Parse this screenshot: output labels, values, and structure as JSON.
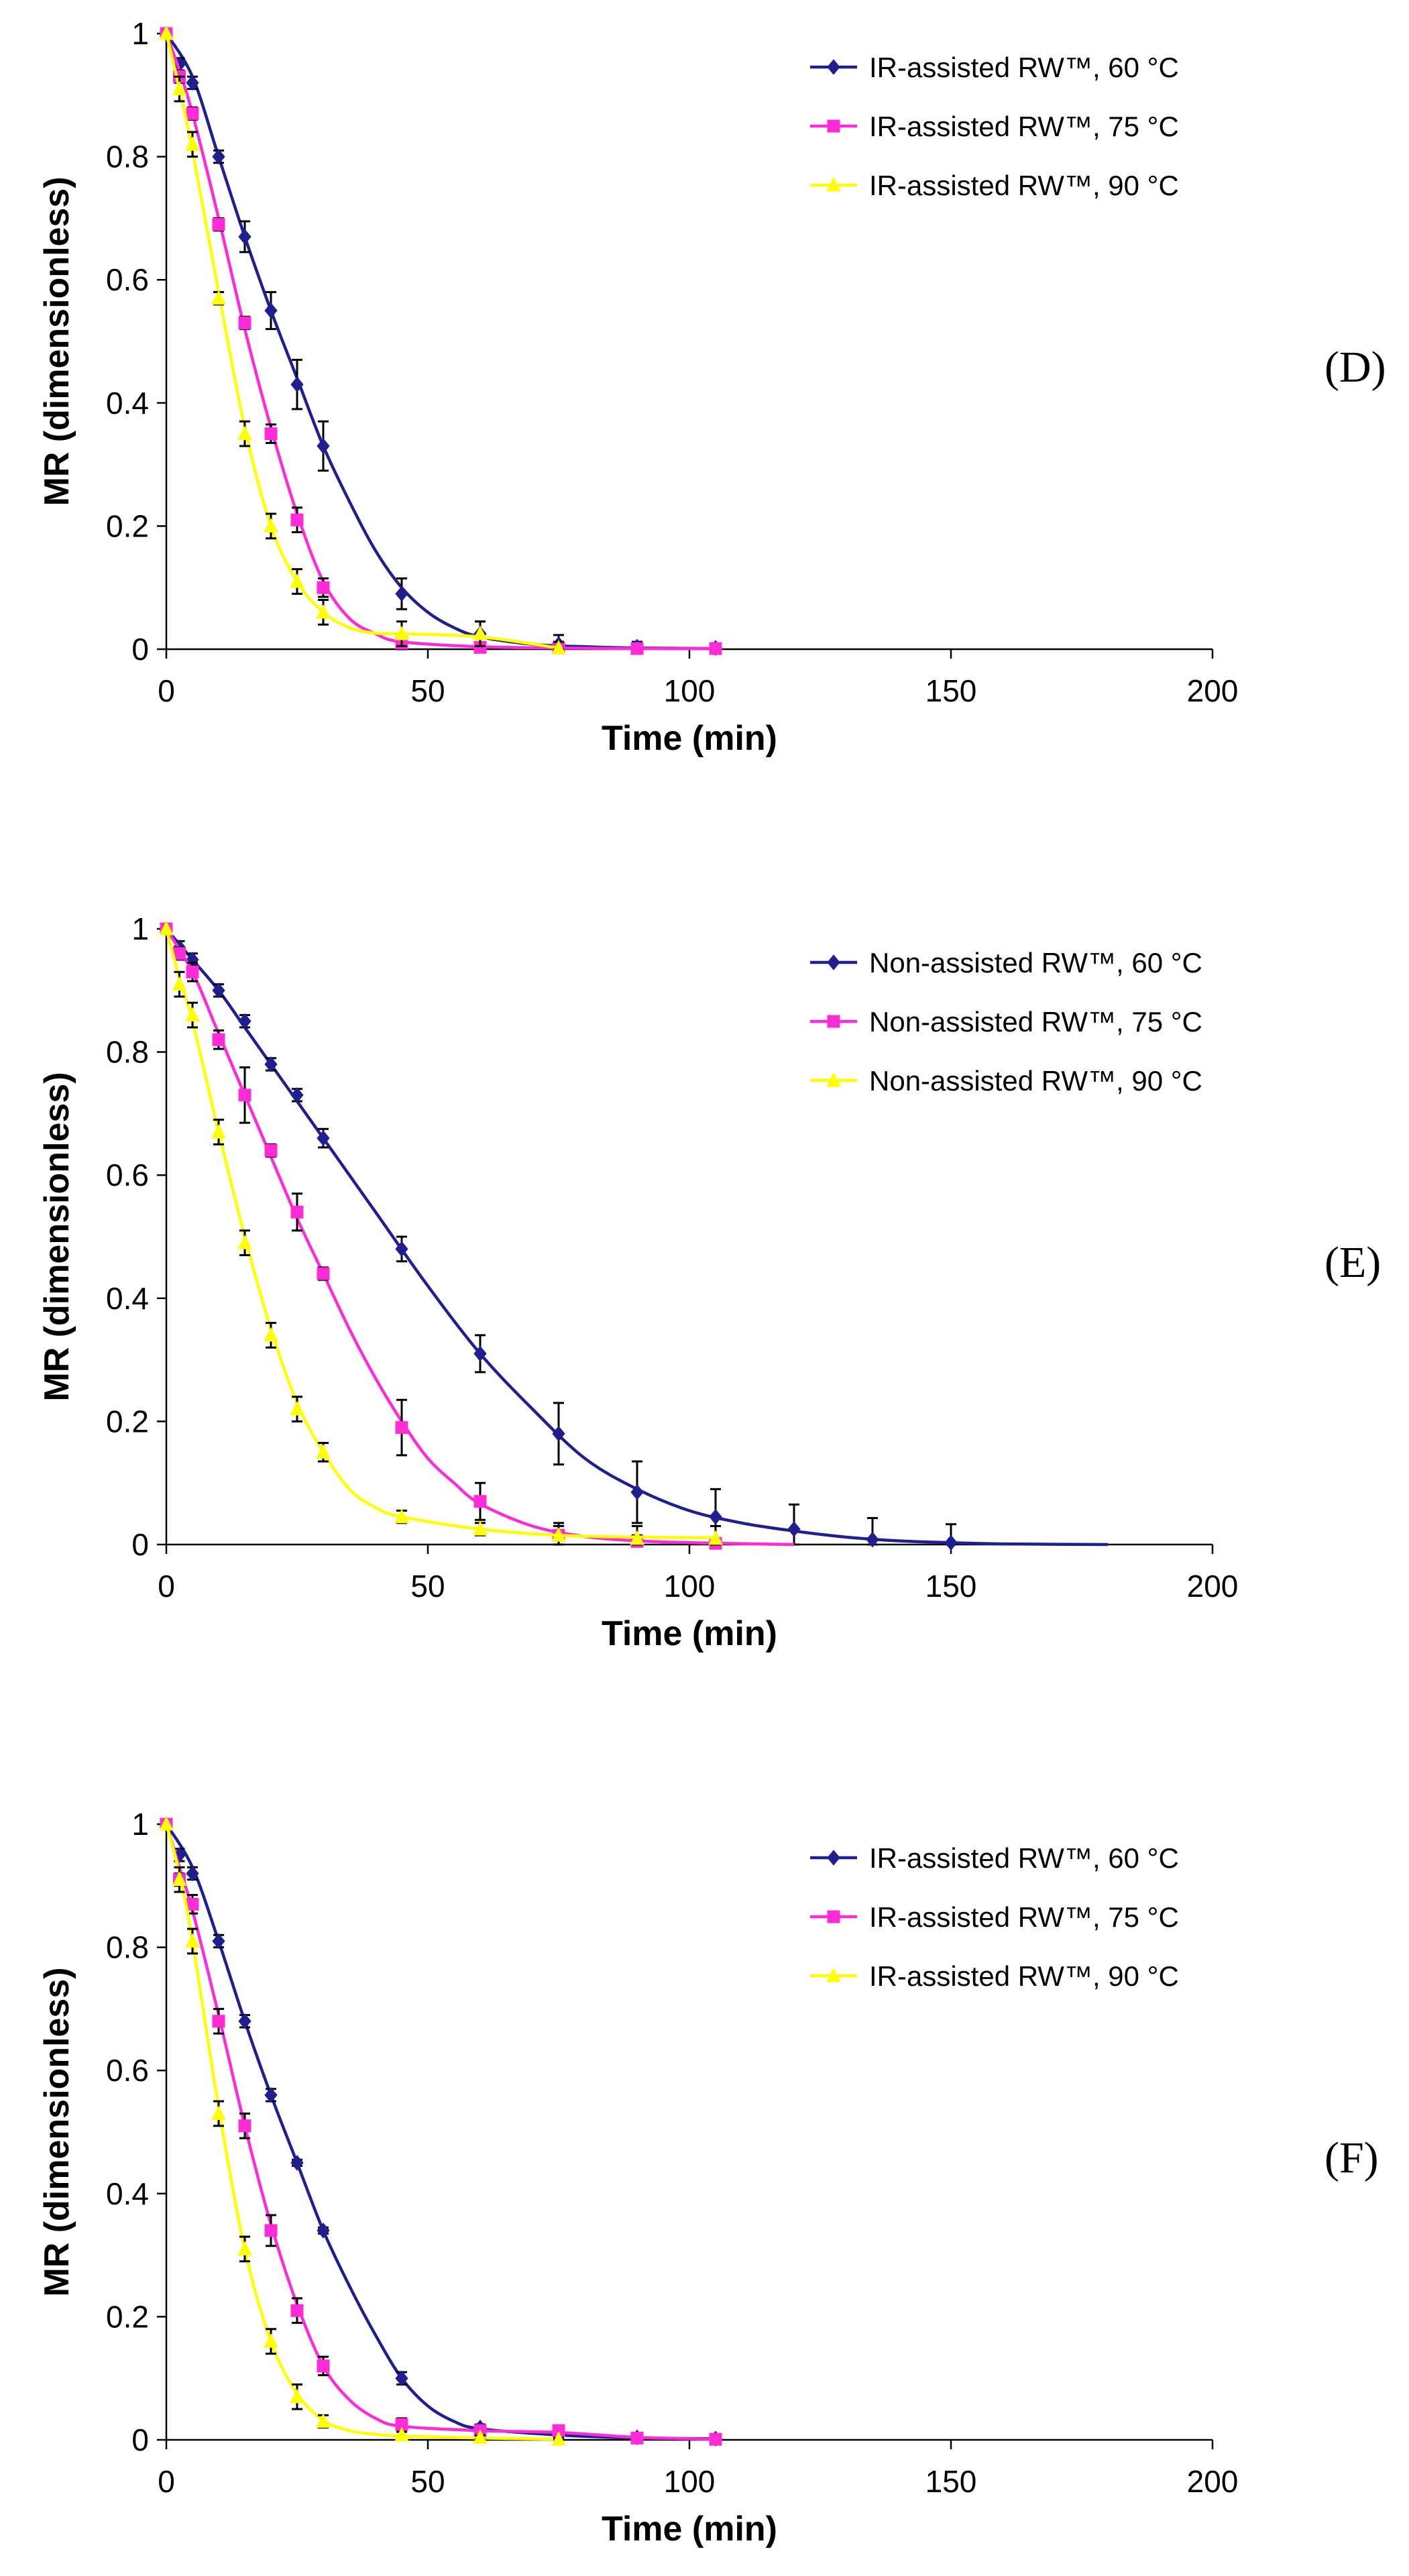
{
  "chart_data": [
    {
      "type": "line",
      "panel": "(D)",
      "xlabel": "Time (min)",
      "ylabel": "MR (dimensionless)",
      "xlim": [
        0,
        200
      ],
      "ylim": [
        0,
        1
      ],
      "xticks": [
        "0",
        "50",
        "100",
        "150",
        "200"
      ],
      "yticks": [
        "0",
        "0.2",
        "0.4",
        "0.6",
        "0.8",
        "1"
      ],
      "legend_position": "top-right",
      "series": [
        {
          "name": "IR-assisted RW™, 60 °C",
          "color": "#1f1f8f",
          "marker": "diamond",
          "x": [
            0,
            2.5,
            5,
            10,
            15,
            20,
            25,
            30,
            45,
            60,
            75,
            90,
            105
          ],
          "y": [
            1.0,
            0.95,
            0.92,
            0.8,
            0.67,
            0.55,
            0.43,
            0.33,
            0.09,
            0.025,
            0.008,
            0.004,
            0.002
          ],
          "err": [
            0,
            0.01,
            0.01,
            0.01,
            0.025,
            0.03,
            0.04,
            0.04,
            0.025,
            0.02,
            0.015,
            0.008,
            0.004
          ],
          "fit_x": [
            0,
            5,
            10,
            15,
            20,
            25,
            30,
            35,
            40,
            45,
            50,
            55,
            60,
            70,
            80,
            90,
            105
          ],
          "fit_y": [
            1.0,
            0.93,
            0.8,
            0.67,
            0.55,
            0.44,
            0.33,
            0.24,
            0.16,
            0.1,
            0.06,
            0.035,
            0.02,
            0.008,
            0.004,
            0.002,
            0.001
          ]
        },
        {
          "name": "IR-assisted RW™, 75 °C",
          "color": "#ff2bd6",
          "marker": "square",
          "x": [
            0,
            2.5,
            5,
            10,
            15,
            20,
            25,
            30,
            45,
            60,
            75,
            90,
            105
          ],
          "y": [
            1.0,
            0.93,
            0.87,
            0.69,
            0.53,
            0.35,
            0.21,
            0.1,
            0.01,
            0.003,
            0.002,
            0.001,
            0.001
          ],
          "err": [
            0,
            0.01,
            0.01,
            0.01,
            0.01,
            0.015,
            0.02,
            0.015,
            0.01,
            0.005,
            0.003,
            0.002,
            0.001
          ],
          "fit_x": [
            0,
            2.5,
            5,
            10,
            15,
            20,
            25,
            30,
            35,
            40,
            45,
            60,
            75,
            90,
            105
          ],
          "fit_y": [
            1.0,
            0.94,
            0.87,
            0.7,
            0.52,
            0.36,
            0.22,
            0.11,
            0.05,
            0.025,
            0.012,
            0.004,
            0.002,
            0.001,
            0.001
          ]
        },
        {
          "name": "IR-assisted RW™, 90 °C",
          "color": "#ffff00",
          "marker": "triangle",
          "x": [
            0,
            2.5,
            5,
            10,
            15,
            20,
            25,
            30,
            45,
            60,
            75
          ],
          "y": [
            1.0,
            0.91,
            0.82,
            0.57,
            0.35,
            0.2,
            0.11,
            0.06,
            0.025,
            0.025,
            0.002
          ],
          "err": [
            0,
            0.02,
            0.02,
            0.01,
            0.02,
            0.02,
            0.02,
            0.02,
            0.02,
            0.02,
            0.01
          ],
          "fit_x": [
            0,
            2.5,
            5,
            10,
            15,
            20,
            25,
            30,
            35,
            40,
            45,
            60,
            75
          ],
          "fit_y": [
            1.0,
            0.91,
            0.81,
            0.58,
            0.36,
            0.2,
            0.11,
            0.06,
            0.035,
            0.026,
            0.025,
            0.02,
            0.002
          ]
        }
      ]
    },
    {
      "type": "line",
      "panel": "(E)",
      "xlabel": "Time (min)",
      "ylabel": "MR (dimensionless)",
      "xlim": [
        0,
        200
      ],
      "ylim": [
        0,
        1
      ],
      "xticks": [
        "0",
        "50",
        "100",
        "150",
        "200"
      ],
      "yticks": [
        "0",
        "0.2",
        "0.4",
        "0.6",
        "0.8",
        "1"
      ],
      "legend_position": "top-right",
      "series": [
        {
          "name": "Non-assisted RW™, 60 °C",
          "color": "#1f1f8f",
          "marker": "diamond",
          "x": [
            0,
            2.5,
            5,
            10,
            15,
            20,
            25,
            30,
            45,
            60,
            75,
            90,
            105,
            120,
            135,
            150
          ],
          "y": [
            1.0,
            0.97,
            0.95,
            0.9,
            0.85,
            0.78,
            0.73,
            0.66,
            0.48,
            0.31,
            0.18,
            0.085,
            0.045,
            0.025,
            0.008,
            0.003
          ],
          "err": [
            0,
            0.01,
            0.01,
            0.01,
            0.01,
            0.01,
            0.01,
            0.015,
            0.02,
            0.03,
            0.05,
            0.05,
            0.045,
            0.04,
            0.035,
            0.03
          ],
          "fit_x": [
            0,
            5,
            10,
            15,
            20,
            25,
            30,
            40,
            50,
            60,
            70,
            80,
            90,
            100,
            110,
            120,
            130,
            140,
            150,
            160,
            180
          ],
          "fit_y": [
            1.0,
            0.95,
            0.9,
            0.84,
            0.78,
            0.72,
            0.66,
            0.54,
            0.42,
            0.31,
            0.22,
            0.14,
            0.09,
            0.055,
            0.035,
            0.022,
            0.012,
            0.006,
            0.003,
            0.001,
            0.0
          ]
        },
        {
          "name": "Non-assisted RW™, 75 °C",
          "color": "#ff2bd6",
          "marker": "square",
          "x": [
            0,
            2.5,
            5,
            10,
            15,
            20,
            25,
            30,
            45,
            60,
            75,
            90,
            105
          ],
          "y": [
            1.0,
            0.96,
            0.93,
            0.82,
            0.73,
            0.64,
            0.54,
            0.44,
            0.19,
            0.07,
            0.015,
            0.005,
            0.002
          ],
          "err": [
            0,
            0.01,
            0.015,
            0.015,
            0.045,
            0.01,
            0.03,
            0.01,
            0.045,
            0.03,
            0.015,
            0.01,
            0.005
          ],
          "fit_x": [
            0,
            5,
            10,
            15,
            20,
            25,
            30,
            35,
            40,
            45,
            50,
            55,
            60,
            70,
            80,
            90,
            100,
            120
          ],
          "fit_y": [
            1.0,
            0.93,
            0.83,
            0.73,
            0.63,
            0.53,
            0.44,
            0.35,
            0.27,
            0.2,
            0.14,
            0.1,
            0.066,
            0.03,
            0.013,
            0.006,
            0.003,
            0.0
          ]
        },
        {
          "name": "Non-assisted RW™, 90 °C",
          "color": "#ffff00",
          "marker": "triangle",
          "x": [
            0,
            2.5,
            5,
            10,
            15,
            20,
            25,
            30,
            45,
            60,
            75,
            90,
            105
          ],
          "y": [
            1.0,
            0.91,
            0.86,
            0.67,
            0.49,
            0.34,
            0.22,
            0.15,
            0.045,
            0.025,
            0.015,
            0.01,
            0.01
          ],
          "err": [
            0,
            0.02,
            0.02,
            0.02,
            0.02,
            0.02,
            0.02,
            0.015,
            0.01,
            0.01,
            0.02,
            0.02,
            0.02
          ],
          "fit_x": [
            0,
            2.5,
            5,
            10,
            15,
            20,
            25,
            30,
            35,
            40,
            45,
            60,
            75,
            90,
            105
          ],
          "fit_y": [
            1.0,
            0.92,
            0.85,
            0.67,
            0.5,
            0.35,
            0.23,
            0.15,
            0.09,
            0.06,
            0.045,
            0.025,
            0.015,
            0.012,
            0.011
          ]
        }
      ]
    },
    {
      "type": "line",
      "panel": "(F)",
      "xlabel": "Time (min)",
      "ylabel": "MR (dimensionless)",
      "xlim": [
        0,
        200
      ],
      "ylim": [
        0,
        1
      ],
      "xticks": [
        "0",
        "50",
        "100",
        "150",
        "200"
      ],
      "yticks": [
        "0",
        "0.2",
        "0.4",
        "0.6",
        "0.8",
        "1"
      ],
      "legend_position": "top-right",
      "series": [
        {
          "name": "IR-assisted RW™, 60 °C",
          "color": "#1f1f8f",
          "marker": "diamond",
          "x": [
            0,
            2.5,
            5,
            10,
            15,
            20,
            25,
            30,
            45,
            60,
            75,
            90,
            105
          ],
          "y": [
            1.0,
            0.95,
            0.92,
            0.81,
            0.68,
            0.56,
            0.45,
            0.34,
            0.1,
            0.02,
            0.01,
            0.004,
            0.002
          ],
          "err": [
            0,
            0.01,
            0.01,
            0.01,
            0.01,
            0.01,
            0.005,
            0.005,
            0.01,
            0.005,
            0.005,
            0.004,
            0.002
          ],
          "fit_x": [
            0,
            5,
            10,
            15,
            20,
            25,
            30,
            35,
            40,
            45,
            50,
            55,
            60,
            75,
            90,
            105
          ],
          "fit_y": [
            1.0,
            0.93,
            0.81,
            0.68,
            0.56,
            0.45,
            0.34,
            0.25,
            0.17,
            0.1,
            0.055,
            0.03,
            0.018,
            0.008,
            0.003,
            0.002
          ]
        },
        {
          "name": "IR-assisted RW™, 75 °C",
          "color": "#ff2bd6",
          "marker": "square",
          "x": [
            0,
            2.5,
            5,
            10,
            15,
            20,
            25,
            30,
            45,
            60,
            75,
            90,
            105
          ],
          "y": [
            1.0,
            0.91,
            0.87,
            0.68,
            0.51,
            0.34,
            0.21,
            0.12,
            0.025,
            0.015,
            0.015,
            0.003,
            0.001
          ],
          "err": [
            0,
            0.01,
            0.015,
            0.02,
            0.02,
            0.025,
            0.02,
            0.015,
            0.01,
            0.005,
            0.005,
            0.003,
            0.001
          ],
          "fit_x": [
            0,
            2.5,
            5,
            10,
            15,
            20,
            25,
            30,
            35,
            40,
            45,
            60,
            75,
            90,
            105
          ],
          "fit_y": [
            1.0,
            0.93,
            0.86,
            0.69,
            0.51,
            0.35,
            0.22,
            0.12,
            0.065,
            0.035,
            0.022,
            0.015,
            0.012,
            0.004,
            0.001
          ]
        },
        {
          "name": "IR-assisted RW™, 90 °C",
          "color": "#ffff00",
          "marker": "triangle",
          "x": [
            0,
            2.5,
            5,
            10,
            15,
            20,
            25,
            30,
            45,
            60,
            75
          ],
          "y": [
            1.0,
            0.91,
            0.81,
            0.53,
            0.31,
            0.16,
            0.07,
            0.03,
            0.008,
            0.004,
            0.001
          ],
          "err": [
            0,
            0.02,
            0.02,
            0.02,
            0.02,
            0.02,
            0.02,
            0.01,
            0.005,
            0.003,
            0.001
          ],
          "fit_x": [
            0,
            2.5,
            5,
            10,
            15,
            20,
            25,
            30,
            35,
            40,
            45,
            60,
            75
          ],
          "fit_y": [
            1.0,
            0.92,
            0.81,
            0.54,
            0.31,
            0.16,
            0.075,
            0.032,
            0.015,
            0.009,
            0.006,
            0.003,
            0.001
          ]
        }
      ]
    }
  ]
}
